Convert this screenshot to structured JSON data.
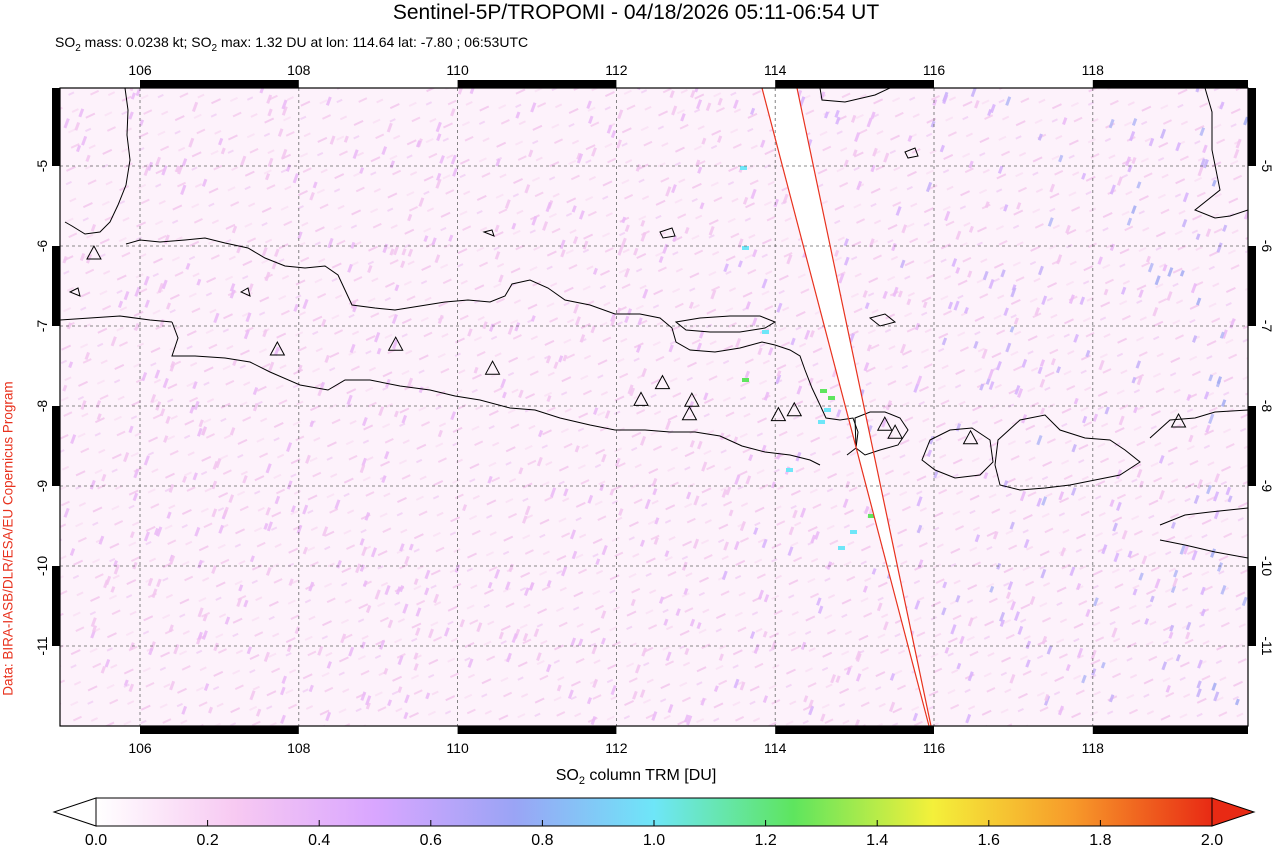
{
  "title": "Sentinel-5P/TROPOMI - 04/18/2026 05:11-06:54 UT",
  "subtitle": {
    "mass_prefix": "SO",
    "mass_rest": " mass: 0.0238 kt; SO",
    "max_rest": " max: 1.32 DU at lon: 114.64 lat: -7.80 ; 06:53UTC"
  },
  "credit": "Data: BIRA-IASB/DLR/ESA/EU Copernicus Program",
  "map": {
    "lon_range": [
      105,
      120
    ],
    "lat_range": [
      -12,
      -4
    ],
    "lon_ticks": [
      "106",
      "108",
      "110",
      "112",
      "114",
      "116",
      "118"
    ],
    "lat_ticks": [
      "-5",
      "-6",
      "-7",
      "-8",
      "-9",
      "-10",
      "-11"
    ],
    "lon_tick_values": [
      106,
      108,
      110,
      112,
      114,
      116,
      118
    ],
    "lat_tick_values": [
      -5,
      -6,
      -7,
      -8,
      -9,
      -10,
      -11
    ],
    "volcanoes": [
      {
        "lon": 105.42,
        "lat": -6.1
      },
      {
        "lon": 107.73,
        "lat": -7.3
      },
      {
        "lon": 109.22,
        "lat": -7.24
      },
      {
        "lon": 110.44,
        "lat": -7.54
      },
      {
        "lon": 112.31,
        "lat": -7.93
      },
      {
        "lon": 112.58,
        "lat": -7.72
      },
      {
        "lon": 112.95,
        "lat": -7.94
      },
      {
        "lon": 112.92,
        "lat": -8.11
      },
      {
        "lon": 114.04,
        "lat": -8.12
      },
      {
        "lon": 114.24,
        "lat": -8.06
      },
      {
        "lon": 115.38,
        "lat": -8.24
      },
      {
        "lon": 115.51,
        "lat": -8.34
      },
      {
        "lon": 116.46,
        "lat": -8.41
      },
      {
        "lon": 119.08,
        "lat": -8.2
      }
    ],
    "gap_color": "#ffffff",
    "swath_edge_color": "#e8321e"
  },
  "colorbar": {
    "label_prefix": "SO",
    "label_rest": " column TRM [DU]",
    "ticks": [
      "0.0",
      "0.2",
      "0.4",
      "0.6",
      "0.8",
      "1.0",
      "1.2",
      "1.4",
      "1.6",
      "1.8",
      "2.0"
    ],
    "min": 0.0,
    "max": 2.0,
    "colors": [
      "#ffffff",
      "#f7c9f2",
      "#d9a6ff",
      "#9aa4f5",
      "#6ee6f8",
      "#5ee55e",
      "#f4f03a",
      "#f79a2a",
      "#e82a14"
    ]
  }
}
